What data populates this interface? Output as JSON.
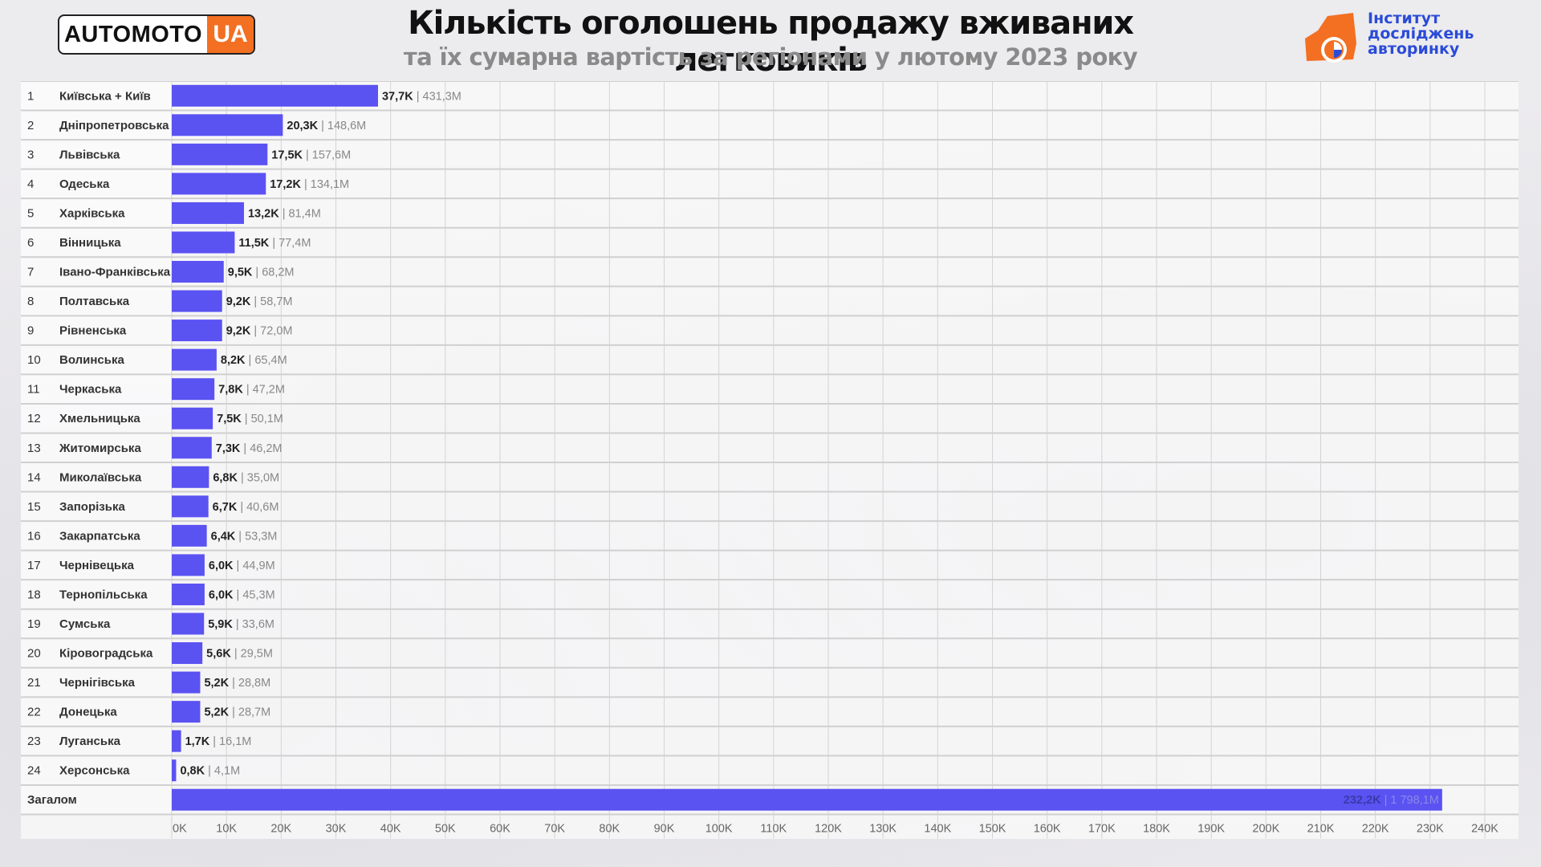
{
  "header": {
    "logo_left_main": "AUTOMOTO",
    "logo_left_ua": "UA",
    "title": "Кількість оголошень продажу вживаних легковиків",
    "subtitle": "та їх сумарна вартість за регіонами у лютому 2023 року",
    "logo_right_lines": [
      "Інститут",
      "досліджень",
      "авторинку"
    ]
  },
  "colors": {
    "bar": "#5b52f2",
    "accent_orange": "#f36f21",
    "logo_blue": "#2a4bd8"
  },
  "chart_data": {
    "type": "bar",
    "orientation": "horizontal",
    "title": "Кількість оголошень продажу вживаних легковиків",
    "subtitle": "та їх сумарна вартість за регіонами у лютому 2023 року",
    "xlim": [
      0,
      240000
    ],
    "x_ticks": [
      "0K",
      "10K",
      "20K",
      "30K",
      "40K",
      "50K",
      "60K",
      "70K",
      "80K",
      "90K",
      "100K",
      "110K",
      "120K",
      "130K",
      "140K",
      "150K",
      "160K",
      "170K",
      "180K",
      "190K",
      "200K",
      "210K",
      "220K",
      "230K",
      "240K"
    ],
    "grid": true,
    "rows": [
      {
        "rank": "1",
        "region": "Київська + Київ",
        "count": 37700,
        "count_label": "37,7K",
        "value_label": "431,3M"
      },
      {
        "rank": "2",
        "region": "Дніпропетровська",
        "count": 20300,
        "count_label": "20,3K",
        "value_label": "148,6M"
      },
      {
        "rank": "3",
        "region": "Львівська",
        "count": 17500,
        "count_label": "17,5K",
        "value_label": "157,6M"
      },
      {
        "rank": "4",
        "region": "Одеська",
        "count": 17200,
        "count_label": "17,2K",
        "value_label": "134,1M"
      },
      {
        "rank": "5",
        "region": "Харківська",
        "count": 13200,
        "count_label": "13,2K",
        "value_label": "81,4M"
      },
      {
        "rank": "6",
        "region": "Вінницька",
        "count": 11500,
        "count_label": "11,5K",
        "value_label": "77,4M"
      },
      {
        "rank": "7",
        "region": "Івано-Франківська",
        "count": 9500,
        "count_label": "9,5K",
        "value_label": "68,2M"
      },
      {
        "rank": "8",
        "region": "Полтавська",
        "count": 9200,
        "count_label": "9,2K",
        "value_label": "58,7M"
      },
      {
        "rank": "9",
        "region": "Рівненська",
        "count": 9200,
        "count_label": "9,2K",
        "value_label": "72,0M"
      },
      {
        "rank": "10",
        "region": "Волинська",
        "count": 8200,
        "count_label": "8,2K",
        "value_label": "65,4M"
      },
      {
        "rank": "11",
        "region": "Черкаська",
        "count": 7800,
        "count_label": "7,8K",
        "value_label": "47,2M"
      },
      {
        "rank": "12",
        "region": "Хмельницька",
        "count": 7500,
        "count_label": "7,5K",
        "value_label": "50,1M"
      },
      {
        "rank": "13",
        "region": "Житомирська",
        "count": 7300,
        "count_label": "7,3K",
        "value_label": "46,2M"
      },
      {
        "rank": "14",
        "region": "Миколаївська",
        "count": 6800,
        "count_label": "6,8K",
        "value_label": "35,0M"
      },
      {
        "rank": "15",
        "region": "Запорізька",
        "count": 6700,
        "count_label": "6,7K",
        "value_label": "40,6M"
      },
      {
        "rank": "16",
        "region": "Закарпатська",
        "count": 6400,
        "count_label": "6,4K",
        "value_label": "53,3M"
      },
      {
        "rank": "17",
        "region": "Чернівецька",
        "count": 6000,
        "count_label": "6,0K",
        "value_label": "44,9M"
      },
      {
        "rank": "18",
        "region": "Тернопільська",
        "count": 6000,
        "count_label": "6,0K",
        "value_label": "45,3M"
      },
      {
        "rank": "19",
        "region": "Сумська",
        "count": 5900,
        "count_label": "5,9K",
        "value_label": "33,6M"
      },
      {
        "rank": "20",
        "region": "Кіровоградська",
        "count": 5600,
        "count_label": "5,6K",
        "value_label": "29,5M"
      },
      {
        "rank": "21",
        "region": "Чернігівська",
        "count": 5200,
        "count_label": "5,2K",
        "value_label": "28,8M"
      },
      {
        "rank": "22",
        "region": "Донецька",
        "count": 5200,
        "count_label": "5,2K",
        "value_label": "28,7M"
      },
      {
        "rank": "23",
        "region": "Луганська",
        "count": 1700,
        "count_label": "1,7K",
        "value_label": "16,1M"
      },
      {
        "rank": "24",
        "region": "Херсонська",
        "count": 800,
        "count_label": "0,8K",
        "value_label": "4,1M"
      }
    ],
    "total": {
      "region": "Загалом",
      "count": 232200,
      "count_label": "232,2K",
      "value_label": "1 798,1M"
    }
  }
}
